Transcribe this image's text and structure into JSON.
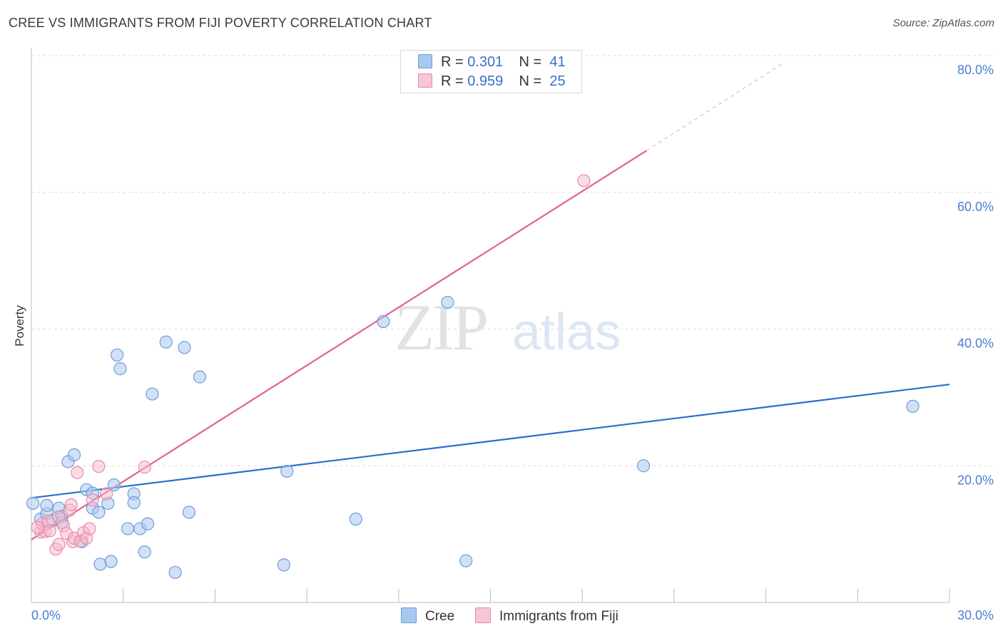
{
  "header": {
    "title": "CREE VS IMMIGRANTS FROM FIJI POVERTY CORRELATION CHART",
    "source": "Source: ZipAtlas.com"
  },
  "watermark": {
    "zip": "ZIP",
    "atlas": "atlas"
  },
  "legend": {
    "cree": {
      "r_label": "R =",
      "r_value": "0.301",
      "n_label": "N =",
      "n_value": "41"
    },
    "fiji": {
      "r_label": "R =",
      "r_value": "0.959",
      "n_label": "N =",
      "n_value": "25"
    }
  },
  "bottom_legend": {
    "cree": "Cree",
    "fiji": "Immigrants from Fiji"
  },
  "colors": {
    "cree_fill": "#a9c8f0",
    "cree_stroke": "#6f9bd8",
    "cree_line": "#2a6fcc",
    "fiji_fill": "#f6b9cb",
    "fiji_stroke": "#e98aa8",
    "fiji_line": "#e0638c",
    "grid": "#dddddd",
    "axis": "#bbbbbb"
  },
  "chart_data": {
    "type": "scatter",
    "title": "CREE VS IMMIGRANTS FROM FIJI POVERTY CORRELATION CHART",
    "xlabel": "",
    "ylabel": "Poverty",
    "xlim": [
      0,
      30
    ],
    "ylim": [
      0,
      80
    ],
    "x_tick_labels": [
      {
        "value": 0,
        "label": "0.0%"
      },
      {
        "value": 30,
        "label": "30.0%"
      }
    ],
    "y_tick_labels": [
      {
        "value": 20,
        "label": "20.0%"
      },
      {
        "value": 40,
        "label": "40.0%"
      },
      {
        "value": 60,
        "label": "60.0%"
      },
      {
        "value": 80,
        "label": "80.0%"
      }
    ],
    "legend_position": "top-center",
    "series": [
      {
        "name": "Cree",
        "r": 0.301,
        "n": 41,
        "points": [
          [
            0.05,
            14.5
          ],
          [
            0.3,
            12.2
          ],
          [
            0.5,
            13.0
          ],
          [
            0.5,
            14.2
          ],
          [
            0.7,
            12.0
          ],
          [
            0.9,
            13.8
          ],
          [
            1.0,
            12.6
          ],
          [
            1.0,
            11.7
          ],
          [
            1.2,
            20.6
          ],
          [
            1.4,
            21.6
          ],
          [
            1.65,
            8.9
          ],
          [
            1.8,
            16.5
          ],
          [
            2.0,
            13.8
          ],
          [
            2.0,
            16.0
          ],
          [
            2.2,
            13.2
          ],
          [
            2.25,
            5.6
          ],
          [
            2.5,
            14.5
          ],
          [
            2.6,
            6.0
          ],
          [
            2.7,
            17.2
          ],
          [
            2.8,
            36.2
          ],
          [
            2.9,
            34.2
          ],
          [
            3.15,
            10.8
          ],
          [
            3.35,
            15.9
          ],
          [
            3.35,
            14.6
          ],
          [
            3.55,
            10.8
          ],
          [
            3.7,
            7.4
          ],
          [
            3.8,
            11.5
          ],
          [
            3.95,
            30.5
          ],
          [
            4.4,
            38.1
          ],
          [
            4.7,
            4.4
          ],
          [
            5.0,
            37.3
          ],
          [
            5.15,
            13.2
          ],
          [
            5.5,
            33.0
          ],
          [
            8.25,
            5.5
          ],
          [
            8.35,
            19.2
          ],
          [
            10.6,
            12.2
          ],
          [
            11.5,
            41.1
          ],
          [
            13.6,
            43.9
          ],
          [
            14.2,
            6.1
          ],
          [
            20.0,
            20.0
          ],
          [
            28.8,
            28.7
          ]
        ],
        "trendline": {
          "x": [
            0,
            30
          ],
          "y": [
            15.3,
            31.9
          ]
        }
      },
      {
        "name": "Immigrants from Fiji",
        "r": 0.959,
        "n": 25,
        "points": [
          [
            0.3,
            10.3
          ],
          [
            0.35,
            11.5
          ],
          [
            0.45,
            10.4
          ],
          [
            0.55,
            11.9
          ],
          [
            0.6,
            10.5
          ],
          [
            0.8,
            7.8
          ],
          [
            0.9,
            12.5
          ],
          [
            0.9,
            8.5
          ],
          [
            1.05,
            11.2
          ],
          [
            1.15,
            10.1
          ],
          [
            1.25,
            13.5
          ],
          [
            1.3,
            14.3
          ],
          [
            1.35,
            8.9
          ],
          [
            1.4,
            9.4
          ],
          [
            1.5,
            19.0
          ],
          [
            1.6,
            9.0
          ],
          [
            1.7,
            10.2
          ],
          [
            1.8,
            9.4
          ],
          [
            1.9,
            10.8
          ],
          [
            2.0,
            15.0
          ],
          [
            2.2,
            19.9
          ],
          [
            2.45,
            15.9
          ],
          [
            3.7,
            19.8
          ],
          [
            18.05,
            61.7
          ],
          [
            0.2,
            11.0
          ]
        ],
        "trendline": {
          "x": [
            0,
            20.1
          ],
          "y": [
            9.2,
            66.1
          ]
        },
        "trendline_dashed_extension": {
          "x": [
            20.1,
            24.6
          ],
          "y": [
            66.1,
            79.0
          ]
        }
      }
    ]
  }
}
